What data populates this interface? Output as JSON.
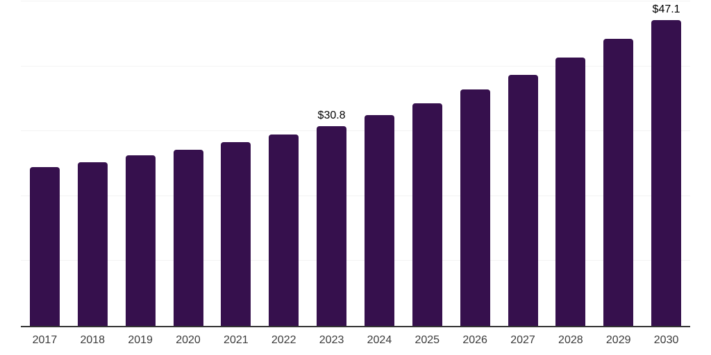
{
  "chart_data": {
    "type": "bar",
    "title": "",
    "categories": [
      "2017",
      "2018",
      "2019",
      "2020",
      "2021",
      "2022",
      "2023",
      "2024",
      "2025",
      "2026",
      "2027",
      "2028",
      "2029",
      "2030"
    ],
    "values": [
      24.5,
      25.2,
      26.3,
      27.1,
      28.3,
      29.5,
      30.8,
      32.5,
      34.3,
      36.4,
      38.7,
      41.3,
      44.2,
      47.1
    ],
    "data_labels": {
      "2023": "$30.8",
      "2030": "$47.1"
    },
    "xlabel": "",
    "ylabel": "",
    "ylim": [
      0,
      50
    ],
    "grid_step": 10,
    "grid": "horizontal",
    "y_tick_labels_visible": false,
    "legend": "none",
    "colors": {
      "bar": "#36104d",
      "axis_line": "#333333",
      "gridline": "#f3f3f3",
      "data_label": "#000000",
      "tick_label": "#3a3a3a",
      "background": "#ffffff"
    }
  }
}
